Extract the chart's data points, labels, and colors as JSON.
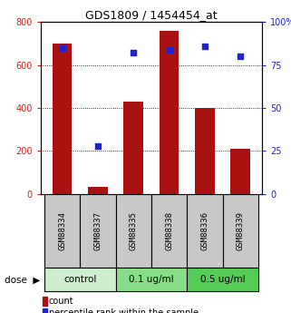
{
  "title": "GDS1809 / 1454454_at",
  "samples": [
    "GSM88334",
    "GSM88337",
    "GSM88335",
    "GSM88338",
    "GSM88336",
    "GSM88339"
  ],
  "counts": [
    700,
    35,
    430,
    760,
    400,
    210
  ],
  "percentile_ranks": [
    85,
    28,
    82,
    84,
    86,
    80
  ],
  "groups": [
    {
      "label": "control",
      "indices": [
        0,
        1
      ]
    },
    {
      "label": "0.1 ug/ml",
      "indices": [
        2,
        3
      ]
    },
    {
      "label": "0.5 ug/ml",
      "indices": [
        4,
        5
      ]
    }
  ],
  "dose_label": "dose",
  "bar_color": "#aa1111",
  "dot_color": "#2222cc",
  "left_ylim": [
    0,
    800
  ],
  "right_ylim": [
    0,
    100
  ],
  "left_yticks": [
    0,
    200,
    400,
    600,
    800
  ],
  "right_yticks": [
    0,
    25,
    50,
    75,
    100
  ],
  "right_ytick_labels": [
    "0",
    "25",
    "50",
    "75",
    "100%"
  ],
  "left_tick_color": "#cc2222",
  "right_tick_color": "#2222cc",
  "legend_count_label": "count",
  "legend_pct_label": "percentile rank within the sample",
  "background_color": "#ffffff",
  "sample_box_color": "#c8c8c8",
  "group_colors": [
    "#cceecc",
    "#88dd88",
    "#55cc55"
  ],
  "arrow_color": "#888888"
}
